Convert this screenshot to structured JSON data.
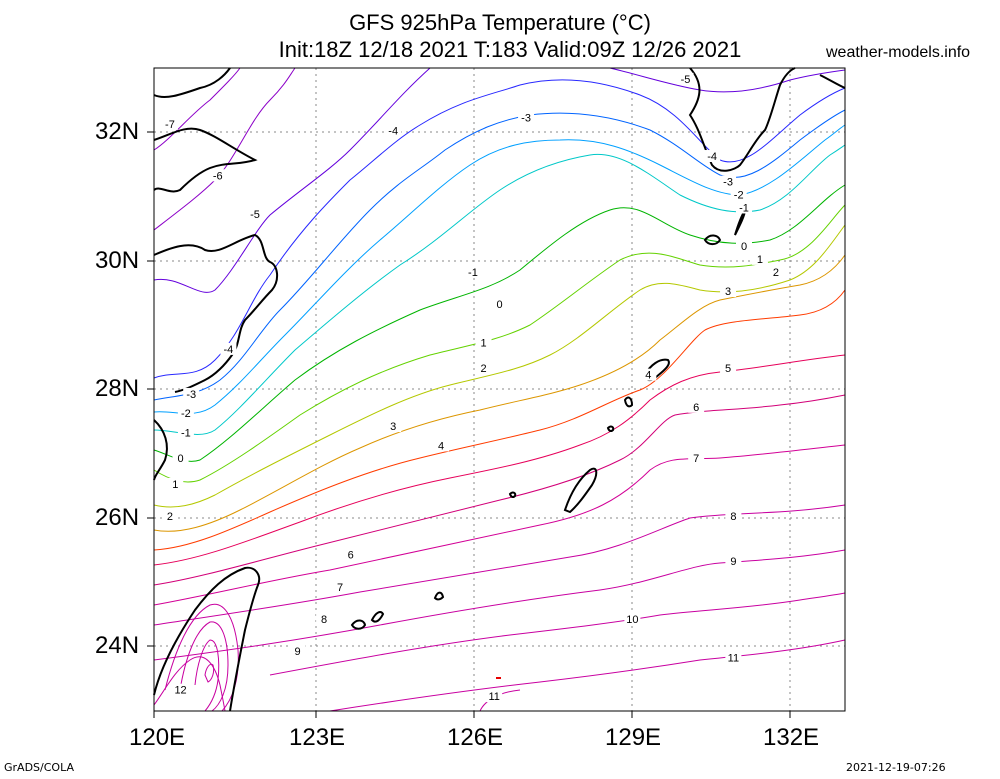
{
  "header": {
    "title_line1": "GFS 925hPa Temperature (°C)",
    "title_line2": "Init:18Z 12/18 2021 T:183 Valid:09Z 12/26 2021",
    "brand": "weather-models.info"
  },
  "footer": {
    "credit": "GrADS/COLA",
    "timestamp": "2021-12-19-07:26"
  },
  "axes": {
    "lon_labels": [
      "120E",
      "123E",
      "126E",
      "129E",
      "132E"
    ],
    "lat_labels": [
      "24N",
      "26N",
      "28N",
      "30N",
      "32N"
    ]
  },
  "map_data": {
    "type": "contour",
    "variable": "925hPa Temperature",
    "unit": "°C",
    "lon_range": [
      120,
      133
    ],
    "lat_range": [
      23,
      33
    ],
    "contour_interval": 1,
    "levels": [
      -7,
      -6,
      -5,
      -4,
      -3,
      -2,
      -1,
      0,
      1,
      2,
      3,
      4,
      5,
      6,
      7,
      8,
      9,
      10,
      11,
      12
    ],
    "contour_colors": {
      "-7": "#8c00c8",
      "-6": "#8c00c8",
      "-5": "#6400dc",
      "-4": "#2828ff",
      "-3": "#0064ff",
      "-2": "#00a0ff",
      "-1": "#00c8c8",
      "0": "#00b400",
      "1": "#64d200",
      "2": "#b4c800",
      "3": "#dc9600",
      "4": "#ff3c00",
      "5": "#e6005a",
      "6": "#d20078",
      "7": "#d20096",
      "8": "#c800a0",
      "9": "#c800a0",
      "10": "#c800a0",
      "11": "#c800a0",
      "12": "#c800a0"
    },
    "contour_labels": [
      {
        "text": "-7",
        "lon": 120.3,
        "lat": 32.1
      },
      {
        "text": "-6",
        "lon": 121.2,
        "lat": 31.3
      },
      {
        "text": "-5",
        "lon": 121.9,
        "lat": 30.7
      },
      {
        "text": "-4",
        "lon": 124.5,
        "lat": 32.0
      },
      {
        "text": "-3",
        "lon": 127.0,
        "lat": 32.2
      },
      {
        "text": "-5",
        "lon": 130.0,
        "lat": 32.8
      },
      {
        "text": "-4",
        "lon": 130.5,
        "lat": 31.6
      },
      {
        "text": "-3",
        "lon": 130.8,
        "lat": 31.2
      },
      {
        "text": "-2",
        "lon": 131.0,
        "lat": 31.0
      },
      {
        "text": "-1",
        "lon": 131.1,
        "lat": 30.8
      },
      {
        "text": "0",
        "lon": 131.1,
        "lat": 30.2
      },
      {
        "text": "1",
        "lon": 131.4,
        "lat": 30.0
      },
      {
        "text": "2",
        "lon": 131.7,
        "lat": 29.8
      },
      {
        "text": "3",
        "lon": 130.8,
        "lat": 29.5
      },
      {
        "text": "-1",
        "lon": 126.0,
        "lat": 29.8
      },
      {
        "text": "0",
        "lon": 126.5,
        "lat": 29.3
      },
      {
        "text": "1",
        "lon": 126.2,
        "lat": 28.7
      },
      {
        "text": "2",
        "lon": 126.2,
        "lat": 28.3
      },
      {
        "text": "-4",
        "lon": 121.4,
        "lat": 28.6
      },
      {
        "text": "-3",
        "lon": 120.7,
        "lat": 27.9
      },
      {
        "text": "-2",
        "lon": 120.6,
        "lat": 27.6
      },
      {
        "text": "-1",
        "lon": 120.6,
        "lat": 27.3
      },
      {
        "text": "0",
        "lon": 120.5,
        "lat": 26.9
      },
      {
        "text": "1",
        "lon": 120.4,
        "lat": 26.5
      },
      {
        "text": "2",
        "lon": 120.3,
        "lat": 26.0
      },
      {
        "text": "3",
        "lon": 124.5,
        "lat": 27.4
      },
      {
        "text": "4",
        "lon": 125.4,
        "lat": 27.1
      },
      {
        "text": "4",
        "lon": 129.3,
        "lat": 28.2
      },
      {
        "text": "5",
        "lon": 130.8,
        "lat": 28.3
      },
      {
        "text": "6",
        "lon": 130.2,
        "lat": 27.7
      },
      {
        "text": "7",
        "lon": 130.2,
        "lat": 26.9
      },
      {
        "text": "8",
        "lon": 130.9,
        "lat": 26.0
      },
      {
        "text": "9",
        "lon": 130.9,
        "lat": 25.3
      },
      {
        "text": "6",
        "lon": 123.7,
        "lat": 25.4
      },
      {
        "text": "7",
        "lon": 123.5,
        "lat": 24.9
      },
      {
        "text": "8",
        "lon": 123.2,
        "lat": 24.4
      },
      {
        "text": "9",
        "lon": 122.7,
        "lat": 23.9
      },
      {
        "text": "10",
        "lon": 129.0,
        "lat": 24.4
      },
      {
        "text": "11",
        "lon": 130.9,
        "lat": 23.8
      },
      {
        "text": "11",
        "lon": 126.4,
        "lat": 23.2
      },
      {
        "text": "12",
        "lon": 120.5,
        "lat": 23.3
      }
    ]
  }
}
